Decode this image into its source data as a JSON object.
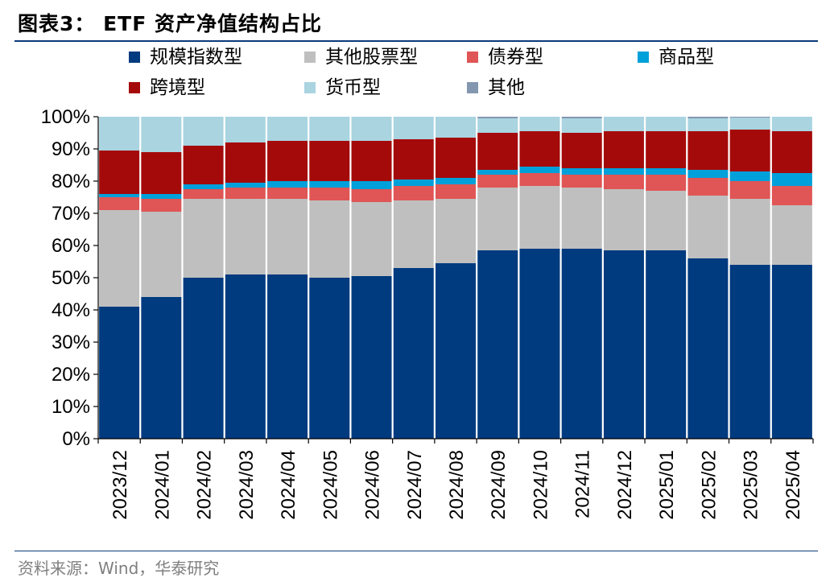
{
  "title": "图表3： ETF 资产净值结构占比",
  "source": "资料来源：Wind，华泰研究",
  "chart_data": {
    "type": "bar",
    "stacked": true,
    "categories": [
      "2023/12",
      "2024/01",
      "2024/02",
      "2024/03",
      "2024/04",
      "2024/05",
      "2024/06",
      "2024/07",
      "2024/08",
      "2024/09",
      "2024/10",
      "2024/11",
      "2024/12",
      "2025/01",
      "2025/02",
      "2025/03",
      "2025/04"
    ],
    "ylim": [
      0,
      100
    ],
    "yticks": [
      "0%",
      "10%",
      "20%",
      "30%",
      "40%",
      "50%",
      "60%",
      "70%",
      "80%",
      "90%",
      "100%"
    ],
    "series": [
      {
        "name": "规模指数型",
        "color": "#003A7F",
        "values": [
          41.0,
          44.0,
          50.0,
          51.0,
          51.0,
          50.0,
          50.5,
          53.0,
          54.5,
          58.5,
          59.0,
          59.0,
          58.5,
          58.5,
          56.0,
          54.0,
          54.0
        ]
      },
      {
        "name": "其他股票型",
        "color": "#BFBFBF",
        "values": [
          30.0,
          26.5,
          24.5,
          23.5,
          23.5,
          24.0,
          23.0,
          21.0,
          20.0,
          19.5,
          19.5,
          19.0,
          19.0,
          18.5,
          19.5,
          20.5,
          18.5
        ]
      },
      {
        "name": "债券型",
        "color": "#E05555",
        "values": [
          4.0,
          4.0,
          3.0,
          3.5,
          3.5,
          4.0,
          4.0,
          4.5,
          4.5,
          4.0,
          4.0,
          4.0,
          4.5,
          5.0,
          5.5,
          5.5,
          6.0
        ]
      },
      {
        "name": "商品型",
        "color": "#00A0DA",
        "values": [
          1.0,
          1.5,
          1.5,
          1.5,
          2.0,
          2.0,
          2.5,
          2.0,
          2.0,
          1.5,
          2.0,
          2.0,
          2.0,
          2.0,
          2.5,
          3.0,
          4.0
        ]
      },
      {
        "name": "跨境型",
        "color": "#A50A0A",
        "values": [
          13.5,
          13.0,
          12.0,
          12.5,
          12.5,
          12.5,
          12.5,
          12.5,
          12.5,
          11.5,
          11.0,
          11.0,
          11.5,
          11.5,
          12.0,
          13.0,
          13.0
        ]
      },
      {
        "name": "货币型",
        "color": "#A9D4E0",
        "values": [
          10.5,
          11.0,
          9.0,
          8.0,
          7.5,
          7.5,
          7.5,
          7.0,
          6.5,
          4.5,
          4.5,
          4.5,
          4.5,
          4.5,
          4.0,
          3.7,
          4.5
        ]
      },
      {
        "name": "其他",
        "color": "#8497B0",
        "values": [
          0.0,
          0.0,
          0.0,
          0.0,
          0.0,
          0.0,
          0.0,
          0.0,
          0.0,
          0.5,
          0.0,
          0.5,
          0.0,
          0.0,
          0.5,
          0.3,
          0.0
        ]
      }
    ],
    "legend_position": "top",
    "grid": false
  }
}
